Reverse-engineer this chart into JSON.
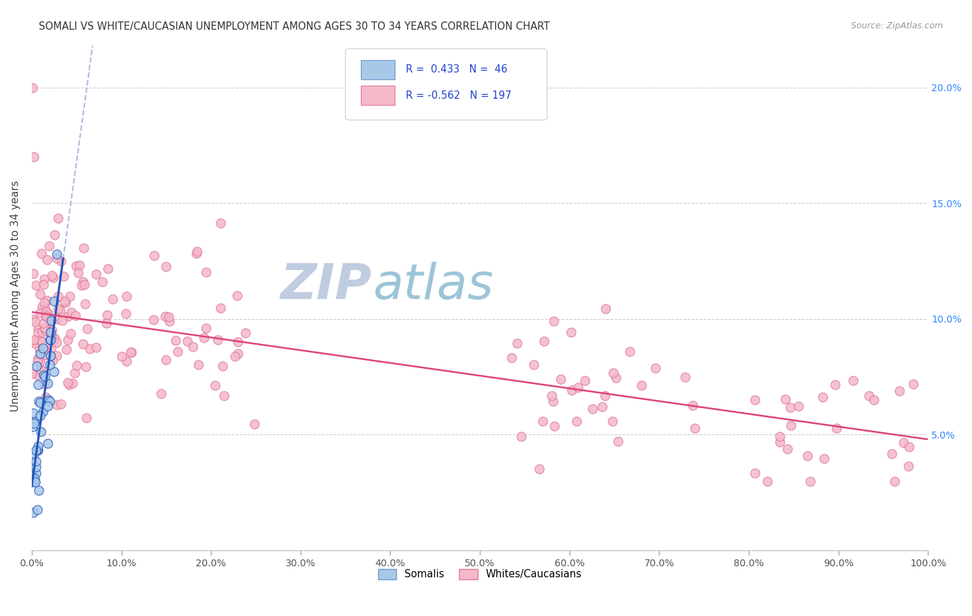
{
  "title": "SOMALI VS WHITE/CAUCASIAN UNEMPLOYMENT AMONG AGES 30 TO 34 YEARS CORRELATION CHART",
  "source": "Source: ZipAtlas.com",
  "ylabel": "Unemployment Among Ages 30 to 34 years",
  "xlim": [
    0,
    1.0
  ],
  "ylim": [
    0,
    0.22
  ],
  "somali_color": "#a8c8e8",
  "somali_edge_color": "#6699cc",
  "white_color": "#f5b8c8",
  "white_edge_color": "#dd7799",
  "somali_R": 0.433,
  "somali_N": 46,
  "white_R": -0.562,
  "white_N": 197,
  "blue_line_color": "#2255bb",
  "pink_line_color": "#dd4477",
  "dashed_line_color": "#aabbdd",
  "watermark_zip_color": "#c5cfe8",
  "watermark_atlas_color": "#b8cfe0",
  "legend_R_color": "#2244cc",
  "blue_intercept": 0.028,
  "blue_slope": 2.8,
  "pink_intercept": 0.103,
  "pink_slope": -0.055
}
